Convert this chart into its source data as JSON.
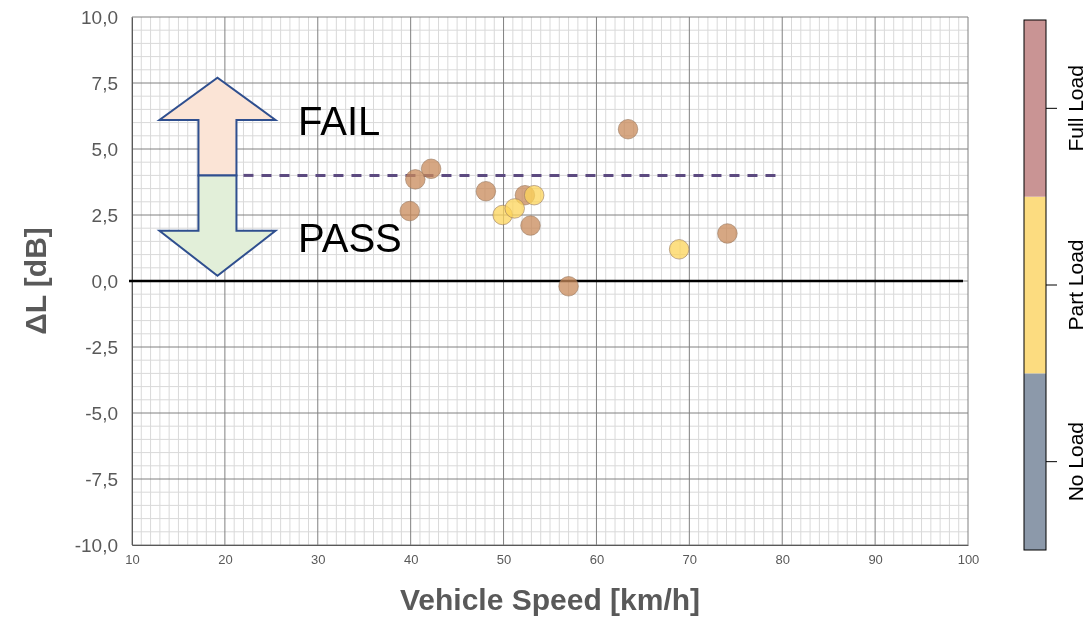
{
  "chart_data": {
    "type": "scatter",
    "xlabel": "Vehicle Speed [km/h]",
    "ylabel": "ΔL [dB]",
    "xlim": [
      10,
      100
    ],
    "xticks": [
      10,
      20,
      30,
      40,
      50,
      60,
      70,
      80,
      90,
      100
    ],
    "ylim": [
      -10,
      10
    ],
    "yticks": [
      {
        "value": -10,
        "label": "-10,0"
      },
      {
        "value": -7.5,
        "label": "-7,5"
      },
      {
        "value": -5,
        "label": "-5,0"
      },
      {
        "value": -2.5,
        "label": "-2,5"
      },
      {
        "value": 0,
        "label": "0,0"
      },
      {
        "value": 2.5,
        "label": "2,5"
      },
      {
        "value": 5,
        "label": "5,0"
      },
      {
        "value": 7.5,
        "label": "7,5"
      },
      {
        "value": 10,
        "label": "10,0"
      }
    ],
    "grid": true,
    "marker": "circle",
    "clim": [
      0,
      3
    ],
    "cticks": [
      {
        "value": 0.5,
        "label": "No Load"
      },
      {
        "value": 1.5,
        "label": "Part Load"
      },
      {
        "value": 2.5,
        "label": "Full Load"
      }
    ],
    "colors": [
      "#8c99aa",
      "#fcdc80",
      "#c99494"
    ],
    "ref_lines": [
      {
        "axis": "y",
        "value": 0,
        "color": "#000000",
        "line_style": "solid"
      }
    ],
    "annotations": [
      "FAIL",
      "PASS"
    ],
    "series": [
      {
        "x": [
          39.9,
          40.5,
          42.2,
          48.1,
          52.3,
          52.9,
          57.0,
          63.4,
          74.1
        ],
        "values": [
          2.65,
          3.85,
          4.25,
          3.4,
          3.25,
          2.1,
          -0.2,
          5.75,
          1.8
        ],
        "color": "#c8895a"
      },
      {
        "x": [
          49.9,
          51.2,
          53.3,
          68.9
        ],
        "values": [
          2.5,
          2.75,
          3.25,
          1.2
        ],
        "color": "#fcd45a"
      },
      {
        "type": "line",
        "x": [
          22,
          80
        ],
        "values": [
          4,
          4
        ],
        "color": "#5c4a80",
        "line_style": "dashed",
        "marker": "none"
      }
    ]
  }
}
